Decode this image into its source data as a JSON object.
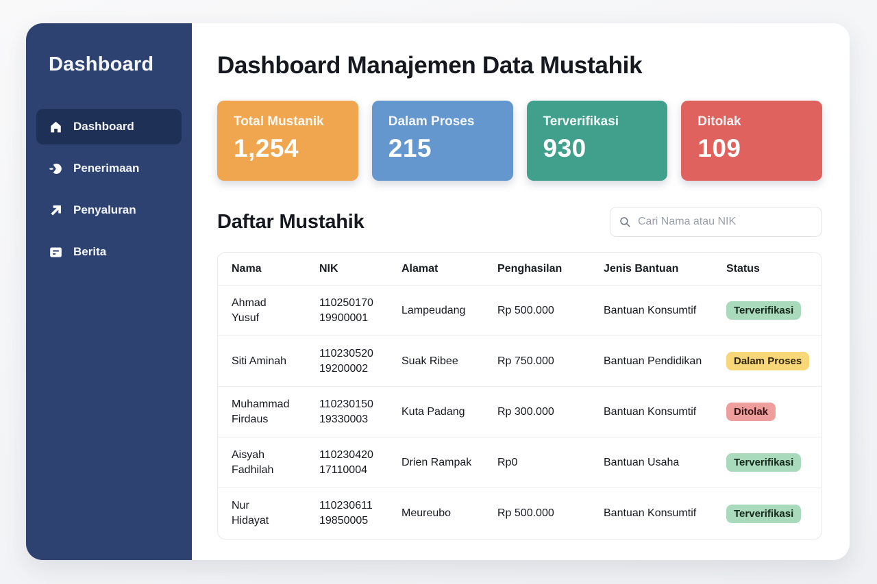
{
  "theme": {
    "sidebar_bg": "#2d4271",
    "sidebar_active_bg": "#1e3056"
  },
  "sidebar": {
    "title": "Dashboard",
    "items": [
      {
        "label": "Dashboard",
        "icon": "home-icon",
        "active": true
      },
      {
        "label": "Penerimaan",
        "icon": "intake-icon",
        "active": false
      },
      {
        "label": "Penyaluran",
        "icon": "distribution-arrow-icon",
        "active": false
      },
      {
        "label": "Berita",
        "icon": "news-icon",
        "active": false
      }
    ]
  },
  "header": {
    "title": "Dashboard Manajemen Data Mustahik"
  },
  "stats": [
    {
      "label": "Total Mustanik",
      "value": "1,254",
      "color": "#efa64e"
    },
    {
      "label": "Dalam Proses",
      "value": "215",
      "color": "#6497cd"
    },
    {
      "label": "Terverifikasi",
      "value": "930",
      "color": "#41a08c"
    },
    {
      "label": "Ditolak",
      "value": "109",
      "color": "#e0625f"
    }
  ],
  "list_section": {
    "title": "Daftar Mustahik",
    "search_placeholder": "Cari Nama atau NIK"
  },
  "table": {
    "columns": [
      "Nama",
      "NIK",
      "Alamat",
      "Penghasilan",
      "Jenis Bantuan",
      "Status"
    ],
    "rows": [
      {
        "nama": "Ahmad\nYusuf",
        "nik": "110250170\n19900001",
        "alamat": "Lampeudang",
        "penghasilan": "Rp 500.000",
        "jenis_bantuan": "Bantuan Konsumtif",
        "status": "Terverifikasi"
      },
      {
        "nama": "Siti Aminah",
        "nik": "110230520\n19200002",
        "alamat": "Suak Ribee",
        "penghasilan": "Rp 750.000",
        "jenis_bantuan": "Bantuan Pendidikan",
        "status": "Dalam Proses"
      },
      {
        "nama": "Muhammad\nFirdaus",
        "nik": "110230150\n19330003",
        "alamat": "Kuta Padang",
        "penghasilan": "Rp 300.000",
        "jenis_bantuan": "Bantuan Konsumtif",
        "status": "Ditolak"
      },
      {
        "nama": "Aisyah\nFadhilah",
        "nik": "110230420\n17110004",
        "alamat": "Drien Rampak",
        "penghasilan": "Rp0",
        "jenis_bantuan": "Bantuan Usaha",
        "status": "Terverifikasi"
      },
      {
        "nama": "Nur\nHidayat",
        "nik": "110230611\n19850005",
        "alamat": "Meureubo",
        "penghasilan": "Rp 500.000",
        "jenis_bantuan": "Bantuan Konsumtif",
        "status": "Terverifikasi"
      }
    ],
    "status_styles": {
      "Terverifikasi": {
        "bg": "#a9dabb",
        "text": "#16281c"
      },
      "Dalam Proses": {
        "bg": "#f8d778",
        "text": "#2e2408"
      },
      "Ditolak": {
        "bg": "#ee9f9d",
        "text": "#331110"
      }
    }
  }
}
